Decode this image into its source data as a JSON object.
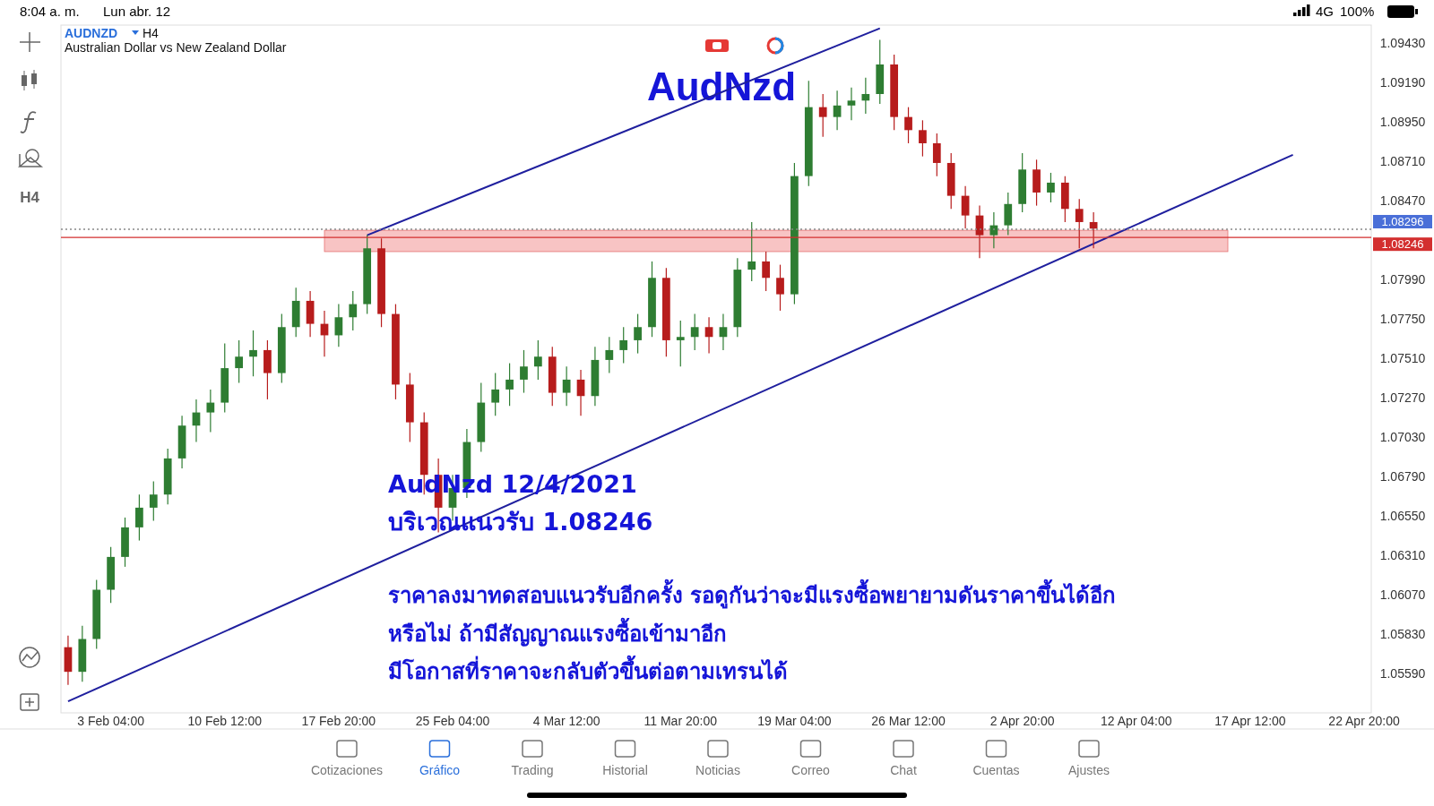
{
  "chart_data": {
    "type": "candlestick",
    "title": "AudNzd",
    "subtitle": "Australian Dollar vs New Zealand Dollar",
    "categories": [
      null,
      null,
      null,
      "3 Feb 04:00",
      null,
      null,
      null,
      null,
      null,
      null,
      null,
      "10 Feb 12:00",
      null,
      null,
      null,
      null,
      null,
      null,
      null,
      "17 Feb 20:00",
      null,
      null,
      null,
      null,
      null,
      null,
      null,
      "25 Feb 04:00",
      null,
      null,
      null,
      null,
      null,
      null,
      null,
      "4 Mar 12:00",
      null,
      null,
      null,
      null,
      null,
      null,
      null,
      "11 Mar 20:00",
      null,
      null,
      null,
      null,
      null,
      null,
      null,
      "19 Mar 04:00",
      null,
      null,
      null,
      null,
      null,
      null,
      null,
      "26 Mar 12:00",
      null,
      null,
      null,
      null,
      null,
      null,
      null,
      "2 Apr 20:00",
      null,
      null,
      null,
      null,
      null,
      null,
      null,
      "12 Apr 04:00",
      null,
      null,
      null,
      null,
      null,
      null,
      null,
      "17 Apr 12:00",
      null,
      null,
      null,
      null,
      null,
      null,
      null,
      "22 Apr 20:00"
    ],
    "ohlc": [
      [
        1.0575,
        1.0582,
        1.0552,
        1.056
      ],
      [
        1.056,
        1.0588,
        1.0554,
        1.058
      ],
      [
        1.058,
        1.0616,
        1.0574,
        1.061
      ],
      [
        1.061,
        1.0636,
        1.0602,
        1.063
      ],
      [
        1.063,
        1.0654,
        1.0624,
        1.0648
      ],
      [
        1.0648,
        1.0668,
        1.064,
        1.066
      ],
      [
        1.066,
        1.0676,
        1.0652,
        1.0668
      ],
      [
        1.0668,
        1.0696,
        1.0662,
        1.069
      ],
      [
        1.069,
        1.0716,
        1.0684,
        1.071
      ],
      [
        1.071,
        1.0726,
        1.07,
        1.0718
      ],
      [
        1.0718,
        1.0732,
        1.0706,
        1.0724
      ],
      [
        1.0724,
        1.076,
        1.0718,
        1.0745
      ],
      [
        1.0745,
        1.0762,
        1.0736,
        1.0752
      ],
      [
        1.0752,
        1.0768,
        1.074,
        1.0756
      ],
      [
        1.0756,
        1.0762,
        1.0726,
        1.0742
      ],
      [
        1.0742,
        1.0778,
        1.0736,
        1.077
      ],
      [
        1.077,
        1.0794,
        1.0764,
        1.0786
      ],
      [
        1.0786,
        1.0792,
        1.0764,
        1.0772
      ],
      [
        1.0772,
        1.078,
        1.0752,
        1.0765
      ],
      [
        1.0765,
        1.0784,
        1.0758,
        1.0776
      ],
      [
        1.0776,
        1.0792,
        1.0768,
        1.0784
      ],
      [
        1.0784,
        1.0826,
        1.0778,
        1.0818
      ],
      [
        1.0818,
        1.0824,
        1.077,
        1.0778
      ],
      [
        1.0778,
        1.0784,
        1.0726,
        1.0735
      ],
      [
        1.0735,
        1.0742,
        1.07,
        1.0712
      ],
      [
        1.0712,
        1.0718,
        1.0668,
        1.068
      ],
      [
        1.068,
        1.069,
        1.0645,
        1.066
      ],
      [
        1.066,
        1.068,
        1.0652,
        1.0672
      ],
      [
        1.0672,
        1.0708,
        1.0666,
        1.07
      ],
      [
        1.07,
        1.0736,
        1.0694,
        1.0724
      ],
      [
        1.0724,
        1.0742,
        1.0716,
        1.0732
      ],
      [
        1.0732,
        1.0748,
        1.0722,
        1.0738
      ],
      [
        1.0738,
        1.0756,
        1.073,
        1.0746
      ],
      [
        1.0746,
        1.0762,
        1.0738,
        1.0752
      ],
      [
        1.0752,
        1.0758,
        1.0722,
        1.073
      ],
      [
        1.073,
        1.0746,
        1.0722,
        1.0738
      ],
      [
        1.0738,
        1.0744,
        1.0716,
        1.0728
      ],
      [
        1.0728,
        1.0758,
        1.0722,
        1.075
      ],
      [
        1.075,
        1.0764,
        1.0742,
        1.0756
      ],
      [
        1.0756,
        1.077,
        1.0748,
        1.0762
      ],
      [
        1.0762,
        1.0778,
        1.0754,
        1.077
      ],
      [
        1.077,
        1.081,
        1.0764,
        1.08
      ],
      [
        1.08,
        1.0806,
        1.0752,
        1.0762
      ],
      [
        1.0762,
        1.0774,
        1.0746,
        1.0764
      ],
      [
        1.0764,
        1.0778,
        1.0756,
        1.077
      ],
      [
        1.077,
        1.0776,
        1.0754,
        1.0764
      ],
      [
        1.0764,
        1.0778,
        1.0756,
        1.077
      ],
      [
        1.077,
        1.0812,
        1.0764,
        1.0805
      ],
      [
        1.0805,
        1.0834,
        1.0798,
        1.081
      ],
      [
        1.081,
        1.0816,
        1.0792,
        1.08
      ],
      [
        1.08,
        1.0808,
        1.078,
        1.079
      ],
      [
        1.079,
        1.087,
        1.0784,
        1.0862
      ],
      [
        1.0862,
        1.092,
        1.0856,
        1.0904
      ],
      [
        1.0904,
        1.0912,
        1.0886,
        1.0898
      ],
      [
        1.0898,
        1.0914,
        1.089,
        1.0905
      ],
      [
        1.0905,
        1.0916,
        1.0896,
        1.0908
      ],
      [
        1.0908,
        1.0922,
        1.09,
        1.0912
      ],
      [
        1.0912,
        1.0945,
        1.0906,
        1.093
      ],
      [
        1.093,
        1.0936,
        1.089,
        1.0898
      ],
      [
        1.0898,
        1.0904,
        1.0882,
        1.089
      ],
      [
        1.089,
        1.0896,
        1.0874,
        1.0882
      ],
      [
        1.0882,
        1.0888,
        1.0862,
        1.087
      ],
      [
        1.087,
        1.0876,
        1.0842,
        1.085
      ],
      [
        1.085,
        1.0856,
        1.083,
        1.0838
      ],
      [
        1.0838,
        1.0844,
        1.0812,
        1.0826
      ],
      [
        1.0826,
        1.084,
        1.0818,
        1.0832
      ],
      [
        1.0832,
        1.0852,
        1.0826,
        1.0845
      ],
      [
        1.0845,
        1.0876,
        1.084,
        1.0866
      ],
      [
        1.0866,
        1.0872,
        1.0844,
        1.0852
      ],
      [
        1.0852,
        1.0864,
        1.0846,
        1.0858
      ],
      [
        1.0858,
        1.0862,
        1.0834,
        1.0842
      ],
      [
        1.0842,
        1.0848,
        1.0818,
        1.0834
      ],
      [
        1.0834,
        1.084,
        1.0818,
        1.083
      ],
      null,
      null,
      null,
      null,
      null,
      null,
      null,
      null,
      null,
      null,
      null,
      null,
      null,
      null,
      null,
      null,
      null,
      null,
      null
    ],
    "series": [
      {
        "type": "line",
        "color": "#1f1f9e",
        "values": [
          1.0542,
          null,
          null,
          null,
          null,
          null,
          null,
          null,
          null,
          null,
          null,
          null,
          null,
          null,
          null,
          null,
          null,
          null,
          null,
          null,
          null,
          null,
          null,
          null,
          null,
          null,
          null,
          null,
          null,
          null,
          null,
          null,
          null,
          null,
          null,
          null,
          null,
          null,
          null,
          null,
          null,
          null,
          null,
          null,
          null,
          null,
          null,
          null,
          null,
          null,
          null,
          null,
          null,
          null,
          null,
          null,
          null,
          null,
          null,
          null,
          null,
          null,
          null,
          null,
          null,
          null,
          null,
          null,
          null,
          null,
          null,
          null,
          null,
          null,
          null,
          null,
          null,
          null,
          null,
          null,
          null,
          null,
          null,
          null,
          null,
          null,
          1.0875,
          null,
          null,
          null,
          null,
          null
        ]
      },
      {
        "type": "line",
        "color": "#1f1f9e",
        "values": [
          null,
          null,
          null,
          null,
          null,
          null,
          null,
          null,
          null,
          null,
          null,
          null,
          null,
          null,
          null,
          null,
          null,
          null,
          null,
          null,
          null,
          1.0826,
          null,
          null,
          null,
          null,
          null,
          null,
          null,
          null,
          null,
          null,
          null,
          null,
          null,
          null,
          null,
          null,
          null,
          null,
          null,
          null,
          null,
          null,
          null,
          null,
          null,
          null,
          null,
          null,
          null,
          null,
          null,
          null,
          null,
          null,
          null,
          1.0952,
          null,
          null,
          null,
          null,
          null,
          null,
          null,
          null,
          null,
          null,
          null,
          null,
          null,
          null,
          null,
          null,
          null,
          null,
          null,
          null,
          null,
          null,
          null,
          null,
          null,
          null,
          null,
          null,
          null,
          null,
          null,
          null,
          null,
          null
        ]
      }
    ],
    "ylim": [
      1.0535,
      1.0954
    ],
    "yticks": [
      {
        "value": 1.0559,
        "label": "1.05590"
      },
      {
        "value": 1.0583,
        "label": "1.05830"
      },
      {
        "value": 1.0607,
        "label": "1.06070"
      },
      {
        "value": 1.0631,
        "label": "1.06310"
      },
      {
        "value": 1.0655,
        "label": "1.06550"
      },
      {
        "value": 1.0679,
        "label": "1.06790"
      },
      {
        "value": 1.0703,
        "label": "1.07030"
      },
      {
        "value": 1.0727,
        "label": "1.07270"
      },
      {
        "value": 1.0751,
        "label": "1.07510"
      },
      {
        "value": 1.0775,
        "label": "1.07750"
      },
      {
        "value": 1.0799,
        "label": "1.07990"
      },
      {
        "value": 1.0847,
        "label": "1.08470"
      },
      {
        "value": 1.0871,
        "label": "1.08710"
      },
      {
        "value": 1.0895,
        "label": "1.08950"
      },
      {
        "value": 1.0919,
        "label": "1.09190"
      },
      {
        "value": 1.0943,
        "label": "1.09430"
      }
    ],
    "ref_lines": [
      {
        "axis": "y",
        "value": 1.08296,
        "label": "1.08296",
        "color": "#888888",
        "line_style": "dotted"
      },
      {
        "axis": "y",
        "value": 1.08246,
        "label": "1.08246",
        "color": "#d32f2f",
        "line_style": "solid"
      }
    ],
    "bands": [
      {
        "axis": "y",
        "from": 1.0816,
        "to": 1.0829,
        "color": "#f8c4c4"
      }
    ],
    "annotations": [
      "AUDNZD",
      "H4",
      "AudNzd 12/4/2021",
      "บริเวณแนวรับ 1.08246",
      "ราคาลงมาทดสอบแนวรับอีกครั้ง รอดูกันว่าจะมีแรงซื้อพยายามดันราคาขึ้นได้อีก",
      "หรือไม่ ถ้ามีสัญญาณแรงซื้อเข้ามาอีก",
      "มีโอกาสที่ราคาจะกลับตัวขึ้นต่อตามเทรนได้",
      "8:04 a. m.",
      "Lun abr. 12",
      "4G",
      "100%",
      "H4",
      "Cotizaciones",
      "Gráfico",
      "Trading",
      "Historial",
      "Noticias",
      "Correo",
      "Chat",
      "Cuentas",
      "Ajustes"
    ]
  }
}
